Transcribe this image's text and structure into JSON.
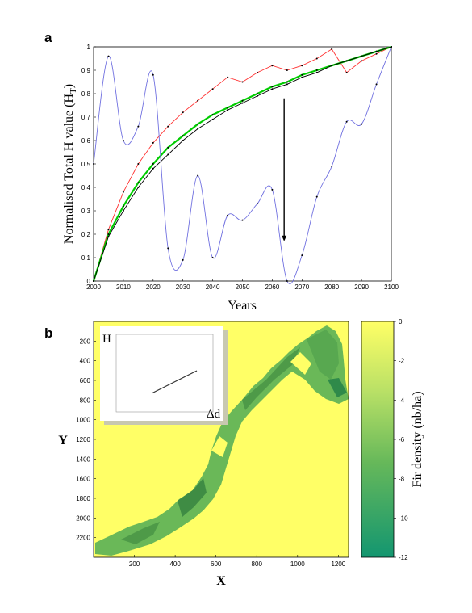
{
  "panel_a": {
    "letter": "a",
    "xlabel": "Years",
    "ylabel_prefix": "Normalised Total H value (H",
    "ylabel_sub": "T",
    "ylabel_suffix": ")"
  },
  "panel_b": {
    "letter": "b",
    "xlabel": "X",
    "ylabel": "Y",
    "colorbar_label": "Fir density (nb/ha)",
    "inset_ylabel": "H",
    "inset_xlabel": "Δd"
  },
  "colors": {
    "red": "#ff3030",
    "blue": "#7070e0",
    "green": "#00cc00",
    "black": "#000000",
    "yellow_bg": "#ffff66",
    "habitat_green": "#5aa84a"
  },
  "chart_data": [
    {
      "type": "line",
      "xlim": [
        2000,
        2100
      ],
      "ylim": [
        0,
        1
      ],
      "x_ticks": [
        2000,
        2010,
        2020,
        2030,
        2040,
        2050,
        2060,
        2070,
        2080,
        2090,
        2100
      ],
      "y_ticks": [
        0,
        0.1,
        0.2,
        0.3,
        0.4,
        0.5,
        0.6,
        0.7,
        0.8,
        0.9,
        1
      ],
      "x": [
        2000,
        2005,
        2010,
        2015,
        2020,
        2025,
        2030,
        2035,
        2040,
        2045,
        2050,
        2055,
        2060,
        2065,
        2070,
        2075,
        2080,
        2085,
        2090,
        2095,
        2100
      ],
      "series": [
        {
          "color": "#ff3030",
          "values": [
            0,
            0.22,
            0.38,
            0.5,
            0.59,
            0.66,
            0.72,
            0.77,
            0.82,
            0.87,
            0.85,
            0.89,
            0.92,
            0.9,
            0.92,
            0.95,
            0.99,
            0.89,
            0.94,
            0.97,
            1.0
          ]
        },
        {
          "color": "#00cc00",
          "values": [
            0,
            0.2,
            0.32,
            0.42,
            0.5,
            0.57,
            0.62,
            0.67,
            0.71,
            0.74,
            0.77,
            0.8,
            0.83,
            0.85,
            0.88,
            0.9,
            0.92,
            0.94,
            0.96,
            0.98,
            1.0
          ]
        },
        {
          "color": "#000000",
          "values": [
            0,
            0.19,
            0.3,
            0.4,
            0.48,
            0.54,
            0.6,
            0.65,
            0.69,
            0.73,
            0.76,
            0.79,
            0.82,
            0.84,
            0.87,
            0.89,
            0.92,
            0.94,
            0.96,
            0.98,
            1.0
          ]
        },
        {
          "color": "#7070e0",
          "values": [
            0.5,
            0.96,
            0.6,
            0.66,
            0.88,
            0.14,
            0.09,
            0.45,
            0.1,
            0.28,
            0.26,
            0.33,
            0.39,
            0.0,
            0.11,
            0.36,
            0.49,
            0.68,
            0.67,
            0.84,
            1.0
          ]
        }
      ],
      "annotation": {
        "type": "arrow",
        "x": 2064,
        "y_from": 0.78,
        "y_to": 0.17
      }
    },
    {
      "type": "heatmap",
      "xlabel": "X",
      "ylabel": "Y",
      "x_ticks": [
        200,
        400,
        600,
        800,
        1000,
        1200
      ],
      "y_ticks": [
        200,
        400,
        600,
        800,
        1000,
        1200,
        1400,
        1600,
        1800,
        2000,
        2200
      ],
      "xlim": [
        0,
        1250
      ],
      "ylim": [
        0,
        2400
      ],
      "colorbar": {
        "label": "Fir density (nb/ha)",
        "ticks": [
          0,
          -2,
          -4,
          -6,
          -8,
          -10,
          -12
        ],
        "range": [
          -12,
          0
        ]
      },
      "inset": {
        "ylabel": "H",
        "xlabel": "Δd"
      }
    }
  ]
}
